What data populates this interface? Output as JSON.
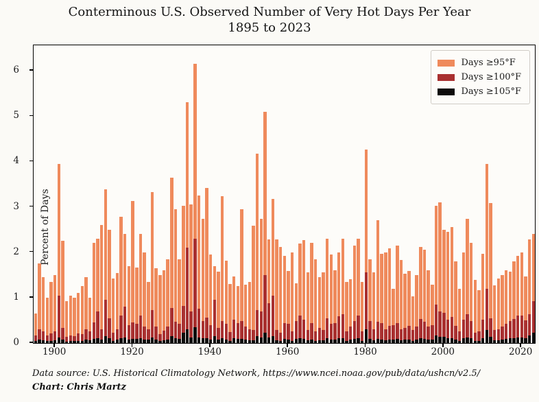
{
  "title": {
    "line1": "Conterminous U.S. Observed Number of Very Hot Days Per Year",
    "line2": "1895 to 2023"
  },
  "axes": {
    "ylabel": "Percent of Days",
    "yticks": [
      0,
      1,
      2,
      3,
      4,
      5,
      6
    ],
    "xticks": [
      1900,
      1920,
      1940,
      1960,
      1980,
      2000,
      2020
    ]
  },
  "legend": {
    "position": "upper right",
    "items": [
      {
        "label": "Days ≥95°F",
        "color": "#ef8a5c"
      },
      {
        "label": "Days ≥100°F",
        "color": "#a93030"
      },
      {
        "label": "Days ≥105°F",
        "color": "#0d0b0b"
      }
    ]
  },
  "footer": {
    "line1": "Data source: U.S. Historical Climatology Network, https://www.ncei.noaa.gov/pub/data/ushcn/v2.5/",
    "line2": "Chart: Chris Martz"
  },
  "chart_data": {
    "type": "bar",
    "title": "Conterminous U.S. Observed Number of Very Hot Days Per Year 1895 to 2023",
    "xlabel": "",
    "ylabel": "Percent of Days",
    "x_start": 1895,
    "x_end": 2023,
    "ylim": [
      0,
      6.56
    ],
    "grid": false,
    "legend_position": "upper right",
    "series": [
      {
        "name": "Days ≥95°F",
        "color": "#ef8a5c",
        "values": [
          0.65,
          1.75,
          1.45,
          1.0,
          1.35,
          1.5,
          3.95,
          2.25,
          0.92,
          1.05,
          1.0,
          1.1,
          1.25,
          1.45,
          1.0,
          2.2,
          2.3,
          2.6,
          3.38,
          2.5,
          1.42,
          1.54,
          2.78,
          2.4,
          1.7,
          3.13,
          1.67,
          2.4,
          2.0,
          1.34,
          3.33,
          1.65,
          1.5,
          1.6,
          1.85,
          3.64,
          2.95,
          1.85,
          3.03,
          5.3,
          3.05,
          6.15,
          3.25,
          2.73,
          3.41,
          1.95,
          1.7,
          1.57,
          3.23,
          1.82,
          1.3,
          1.47,
          1.25,
          2.95,
          1.28,
          1.34,
          2.58,
          4.17,
          2.74,
          5.1,
          2.28,
          3.17,
          2.29,
          2.11,
          1.92,
          1.58,
          1.99,
          1.31,
          2.19,
          2.26,
          1.55,
          2.2,
          1.85,
          1.45,
          1.55,
          2.3,
          1.95,
          1.6,
          2.0,
          2.3,
          1.35,
          1.4,
          2.15,
          2.3,
          1.35,
          4.27,
          1.84,
          1.56,
          2.71,
          1.97,
          1.99,
          2.09,
          1.2,
          2.15,
          1.83,
          1.53,
          1.58,
          1.03,
          1.49,
          2.11,
          2.06,
          1.61,
          1.28,
          3.03,
          3.1,
          2.5,
          2.45,
          2.55,
          1.8,
          1.19,
          2.0,
          2.74,
          2.2,
          1.39,
          1.17,
          1.97,
          3.94,
          3.08,
          1.27,
          1.42,
          1.5,
          1.6,
          1.57,
          1.8,
          1.92,
          2.0,
          1.47,
          2.28,
          2.4
        ]
      },
      {
        "name": "Days ≥100°F",
        "color": "#a93030",
        "values": [
          0.17,
          0.3,
          0.26,
          0.16,
          0.21,
          0.26,
          1.05,
          0.33,
          0.13,
          0.16,
          0.15,
          0.21,
          0.19,
          0.3,
          0.26,
          0.45,
          0.7,
          0.3,
          0.95,
          0.55,
          0.22,
          0.31,
          0.6,
          0.8,
          0.39,
          0.45,
          0.42,
          0.6,
          0.37,
          0.31,
          0.72,
          0.37,
          0.19,
          0.27,
          0.37,
          0.77,
          0.47,
          0.42,
          0.81,
          2.1,
          0.7,
          2.3,
          0.75,
          0.49,
          0.56,
          0.39,
          0.95,
          0.33,
          0.48,
          0.42,
          0.24,
          0.51,
          0.44,
          0.48,
          0.36,
          0.31,
          0.29,
          0.73,
          0.69,
          1.5,
          0.87,
          1.05,
          0.29,
          0.22,
          0.44,
          0.42,
          0.26,
          0.48,
          0.61,
          0.51,
          0.29,
          0.44,
          0.26,
          0.33,
          0.29,
          0.54,
          0.42,
          0.44,
          0.59,
          0.64,
          0.26,
          0.36,
          0.48,
          0.61,
          0.26,
          1.55,
          0.48,
          0.31,
          0.47,
          0.44,
          0.31,
          0.38,
          0.4,
          0.44,
          0.31,
          0.33,
          0.38,
          0.28,
          0.36,
          0.53,
          0.47,
          0.36,
          0.4,
          0.84,
          0.69,
          0.67,
          0.51,
          0.58,
          0.38,
          0.26,
          0.51,
          0.63,
          0.49,
          0.23,
          0.26,
          0.51,
          1.2,
          0.55,
          0.28,
          0.31,
          0.36,
          0.43,
          0.48,
          0.53,
          0.6,
          0.6,
          0.5,
          0.64,
          0.92
        ]
      },
      {
        "name": "Days ≥105°F",
        "color": "#0d0b0b",
        "values": [
          0.05,
          0.07,
          0.06,
          0.04,
          0.05,
          0.06,
          0.12,
          0.07,
          0.03,
          0.04,
          0.04,
          0.05,
          0.05,
          0.07,
          0.06,
          0.09,
          0.1,
          0.07,
          0.15,
          0.1,
          0.05,
          0.07,
          0.1,
          0.12,
          0.08,
          0.09,
          0.09,
          0.11,
          0.08,
          0.07,
          0.12,
          0.08,
          0.04,
          0.06,
          0.08,
          0.15,
          0.1,
          0.09,
          0.22,
          0.3,
          0.12,
          0.35,
          0.12,
          0.1,
          0.1,
          0.08,
          0.15,
          0.07,
          0.1,
          0.08,
          0.05,
          0.1,
          0.09,
          0.09,
          0.07,
          0.06,
          0.06,
          0.15,
          0.12,
          0.22,
          0.12,
          0.15,
          0.06,
          0.05,
          0.09,
          0.08,
          0.05,
          0.09,
          0.11,
          0.09,
          0.06,
          0.08,
          0.05,
          0.06,
          0.06,
          0.1,
          0.08,
          0.08,
          0.1,
          0.11,
          0.05,
          0.07,
          0.09,
          0.11,
          0.05,
          0.3,
          0.09,
          0.06,
          0.09,
          0.08,
          0.06,
          0.07,
          0.08,
          0.09,
          0.06,
          0.07,
          0.07,
          0.05,
          0.07,
          0.11,
          0.09,
          0.07,
          0.08,
          0.16,
          0.13,
          0.13,
          0.1,
          0.11,
          0.07,
          0.05,
          0.1,
          0.12,
          0.1,
          0.05,
          0.05,
          0.1,
          0.28,
          0.14,
          0.06,
          0.06,
          0.07,
          0.09,
          0.1,
          0.11,
          0.12,
          0.12,
          0.1,
          0.17,
          0.22
        ]
      }
    ]
  }
}
